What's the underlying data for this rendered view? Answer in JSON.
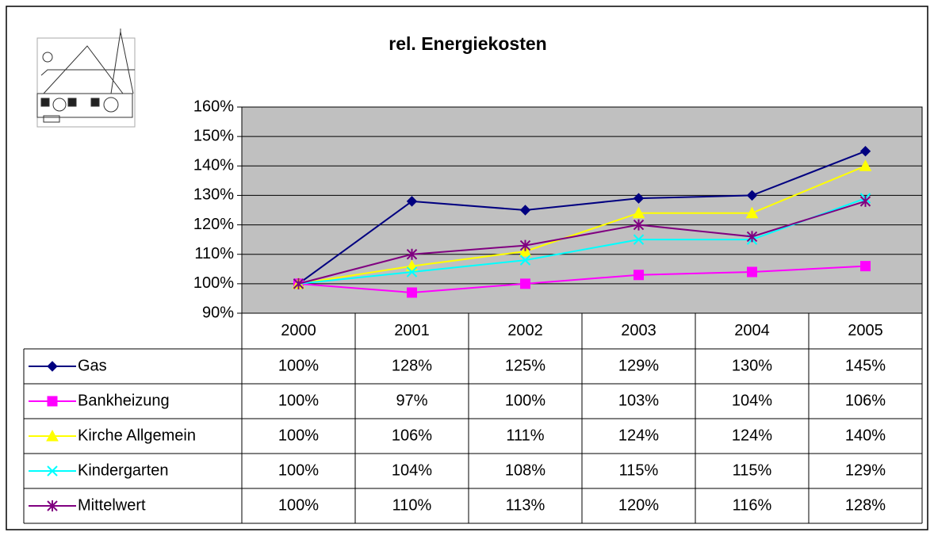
{
  "chart_data": {
    "type": "line",
    "title": "rel. Energiekosten",
    "categories": [
      "2000",
      "2001",
      "2002",
      "2003",
      "2004",
      "2005"
    ],
    "ylim": [
      90,
      160
    ],
    "yticks": [
      {
        "value": 90,
        "label": "90%"
      },
      {
        "value": 100,
        "label": "100%"
      },
      {
        "value": 110,
        "label": "110%"
      },
      {
        "value": 120,
        "label": "120%"
      },
      {
        "value": 130,
        "label": "130%"
      },
      {
        "value": 140,
        "label": "140%"
      },
      {
        "value": 150,
        "label": "150%"
      },
      {
        "value": 160,
        "label": "160%"
      }
    ],
    "grid": true,
    "series": [
      {
        "name": "Gas",
        "color": "#000080",
        "marker": "diamond",
        "values": [
          100,
          128,
          125,
          129,
          130,
          145
        ],
        "value_labels": [
          "100%",
          "128%",
          "125%",
          "129%",
          "130%",
          "145%"
        ]
      },
      {
        "name": "Bankheizung",
        "color": "#ff00ff",
        "marker": "square",
        "values": [
          100,
          97,
          100,
          103,
          104,
          106
        ],
        "value_labels": [
          "100%",
          "97%",
          "100%",
          "103%",
          "104%",
          "106%"
        ]
      },
      {
        "name": "Kirche Allgemein",
        "color": "#ffff00",
        "marker": "triangle",
        "values": [
          100,
          106,
          111,
          124,
          124,
          140
        ],
        "value_labels": [
          "100%",
          "106%",
          "111%",
          "124%",
          "124%",
          "140%"
        ]
      },
      {
        "name": "Kindergarten",
        "color": "#00ffff",
        "marker": "x",
        "values": [
          100,
          104,
          108,
          115,
          115,
          129
        ],
        "value_labels": [
          "100%",
          "104%",
          "108%",
          "115%",
          "115%",
          "129%"
        ]
      },
      {
        "name": "Mittelwert",
        "color": "#800080",
        "marker": "star",
        "values": [
          100,
          110,
          113,
          120,
          116,
          128
        ],
        "value_labels": [
          "100%",
          "110%",
          "113%",
          "120%",
          "116%",
          "128%"
        ]
      }
    ]
  }
}
